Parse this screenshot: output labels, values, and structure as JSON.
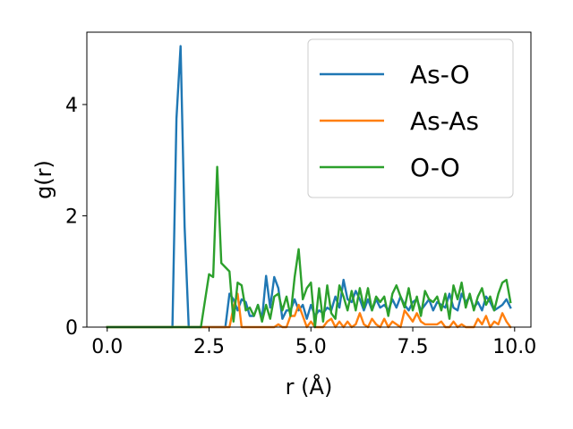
{
  "chart_data": {
    "type": "line",
    "title": "",
    "xlabel": "r (Å)",
    "ylabel": "g(r)",
    "xlim": [
      -0.5,
      10.4
    ],
    "ylim": [
      0,
      5.3
    ],
    "xticks": [
      0.0,
      2.5,
      5.0,
      7.5,
      10.0
    ],
    "xtick_labels": [
      "0.0",
      "2.5",
      "5.0",
      "7.5",
      "10.0"
    ],
    "yticks": [
      0,
      2,
      4
    ],
    "ytick_labels": [
      "0",
      "2",
      "4"
    ],
    "grid": false,
    "legend": "top-right",
    "series": [
      {
        "name": "As-O",
        "color": "#1f77b4",
        "x": [
          0.0,
          0.5,
          1.0,
          1.5,
          1.6,
          1.7,
          1.8,
          1.9,
          2.0,
          2.1,
          2.5,
          2.8,
          2.9,
          3.0,
          3.1,
          3.2,
          3.3,
          3.4,
          3.5,
          3.6,
          3.7,
          3.8,
          3.9,
          4.0,
          4.1,
          4.2,
          4.3,
          4.4,
          4.5,
          4.6,
          4.7,
          4.8,
          4.9,
          5.0,
          5.1,
          5.2,
          5.3,
          5.4,
          5.5,
          5.6,
          5.7,
          5.8,
          5.9,
          6.0,
          6.1,
          6.2,
          6.3,
          6.4,
          6.5,
          6.6,
          6.7,
          6.8,
          6.9,
          7.0,
          7.1,
          7.2,
          7.3,
          7.4,
          7.5,
          7.6,
          7.7,
          7.8,
          7.9,
          8.0,
          8.1,
          8.2,
          8.3,
          8.4,
          8.5,
          8.6,
          8.7,
          8.8,
          8.9,
          9.0,
          9.1,
          9.2,
          9.3,
          9.4,
          9.5,
          9.6,
          9.7,
          9.8,
          9.9
        ],
        "y": [
          0.0,
          0.0,
          0.0,
          0.0,
          0.0,
          3.75,
          5.05,
          1.8,
          0.0,
          0.0,
          0.0,
          0.0,
          0.0,
          0.6,
          0.5,
          0.3,
          0.5,
          0.45,
          0.2,
          0.2,
          0.4,
          0.15,
          0.92,
          0.35,
          0.9,
          0.7,
          0.15,
          0.3,
          0.3,
          0.5,
          0.3,
          0.4,
          0.15,
          0.4,
          0.2,
          0.3,
          0.25,
          0.35,
          0.3,
          0.55,
          0.35,
          0.85,
          0.5,
          0.45,
          0.65,
          0.5,
          0.3,
          0.5,
          0.3,
          0.5,
          0.35,
          0.4,
          0.3,
          0.5,
          0.35,
          0.55,
          0.4,
          0.3,
          0.45,
          0.5,
          0.3,
          0.4,
          0.5,
          0.3,
          0.45,
          0.4,
          0.35,
          0.6,
          0.35,
          0.3,
          0.6,
          0.45,
          0.55,
          0.35,
          0.45,
          0.3,
          0.55,
          0.45,
          0.3,
          0.35,
          0.4,
          0.5,
          0.35
        ]
      },
      {
        "name": "As-As",
        "color": "#ff7f0e",
        "x": [
          0.0,
          1.0,
          2.0,
          2.9,
          3.0,
          3.1,
          3.2,
          3.3,
          3.4,
          3.5,
          3.6,
          3.7,
          3.8,
          3.9,
          4.0,
          4.1,
          4.2,
          4.3,
          4.4,
          4.5,
          4.6,
          4.7,
          4.8,
          4.9,
          5.0,
          5.1,
          5.2,
          5.3,
          5.4,
          5.5,
          5.6,
          5.7,
          5.8,
          5.9,
          6.0,
          6.1,
          6.2,
          6.3,
          6.4,
          6.5,
          6.6,
          6.7,
          6.8,
          6.9,
          7.0,
          7.1,
          7.2,
          7.3,
          7.4,
          7.5,
          7.6,
          7.7,
          7.8,
          7.9,
          8.0,
          8.1,
          8.2,
          8.3,
          8.4,
          8.5,
          8.6,
          8.7,
          8.8,
          8.9,
          9.0,
          9.1,
          9.2,
          9.3,
          9.4,
          9.5,
          9.6,
          9.7,
          9.8,
          9.9
        ],
        "y": [
          0.0,
          0.0,
          0.0,
          0.0,
          0.0,
          0.35,
          0.6,
          0.0,
          0.0,
          0.0,
          0.0,
          0.0,
          0.0,
          0.0,
          0.0,
          0.0,
          0.05,
          0.0,
          0.0,
          0.2,
          0.2,
          0.4,
          0.2,
          0.0,
          0.1,
          0.0,
          0.0,
          0.0,
          0.1,
          0.15,
          0.0,
          0.1,
          0.0,
          0.1,
          0.0,
          0.05,
          0.25,
          0.05,
          0.0,
          0.15,
          0.05,
          0.0,
          0.15,
          0.0,
          0.1,
          0.05,
          0.0,
          0.3,
          0.2,
          0.1,
          0.25,
          0.1,
          0.05,
          0.05,
          0.05,
          0.05,
          0.1,
          0.0,
          0.0,
          0.1,
          0.0,
          0.05,
          0.0,
          0.0,
          0.0,
          0.15,
          0.05,
          0.2,
          0.0,
          0.1,
          0.05,
          0.25,
          0.1,
          0.0
        ]
      },
      {
        "name": "O-O",
        "color": "#2ca02c",
        "x": [
          0.0,
          1.0,
          2.0,
          2.3,
          2.5,
          2.6,
          2.7,
          2.8,
          3.0,
          3.1,
          3.2,
          3.3,
          3.4,
          3.5,
          3.6,
          3.7,
          3.8,
          3.9,
          4.0,
          4.1,
          4.2,
          4.3,
          4.4,
          4.5,
          4.6,
          4.7,
          4.8,
          4.9,
          5.0,
          5.1,
          5.2,
          5.3,
          5.4,
          5.5,
          5.6,
          5.7,
          5.8,
          5.9,
          6.0,
          6.1,
          6.2,
          6.3,
          6.4,
          6.5,
          6.6,
          6.7,
          6.8,
          6.9,
          7.0,
          7.1,
          7.2,
          7.3,
          7.4,
          7.5,
          7.6,
          7.7,
          7.8,
          7.9,
          8.0,
          8.1,
          8.2,
          8.3,
          8.4,
          8.5,
          8.6,
          8.7,
          8.8,
          8.9,
          9.0,
          9.1,
          9.2,
          9.3,
          9.4,
          9.5,
          9.6,
          9.7,
          9.8,
          9.9
        ],
        "y": [
          0.0,
          0.0,
          0.0,
          0.0,
          0.95,
          0.9,
          2.88,
          1.15,
          1.0,
          0.1,
          0.8,
          0.75,
          0.3,
          0.35,
          0.2,
          0.4,
          0.1,
          0.4,
          0.15,
          0.55,
          0.6,
          0.3,
          0.55,
          0.2,
          0.9,
          1.4,
          0.5,
          0.7,
          0.8,
          0.0,
          0.7,
          0.1,
          0.75,
          0.25,
          0.15,
          0.75,
          0.55,
          0.3,
          0.65,
          0.3,
          0.7,
          0.35,
          0.7,
          0.3,
          0.55,
          0.45,
          0.55,
          0.2,
          0.6,
          0.75,
          0.55,
          0.35,
          0.7,
          0.3,
          0.55,
          0.2,
          0.65,
          0.5,
          0.45,
          0.55,
          0.3,
          0.6,
          0.15,
          0.75,
          0.5,
          0.8,
          0.35,
          0.6,
          0.3,
          0.55,
          0.7,
          0.4,
          0.55,
          0.3,
          0.6,
          0.8,
          0.85,
          0.45
        ]
      }
    ]
  }
}
